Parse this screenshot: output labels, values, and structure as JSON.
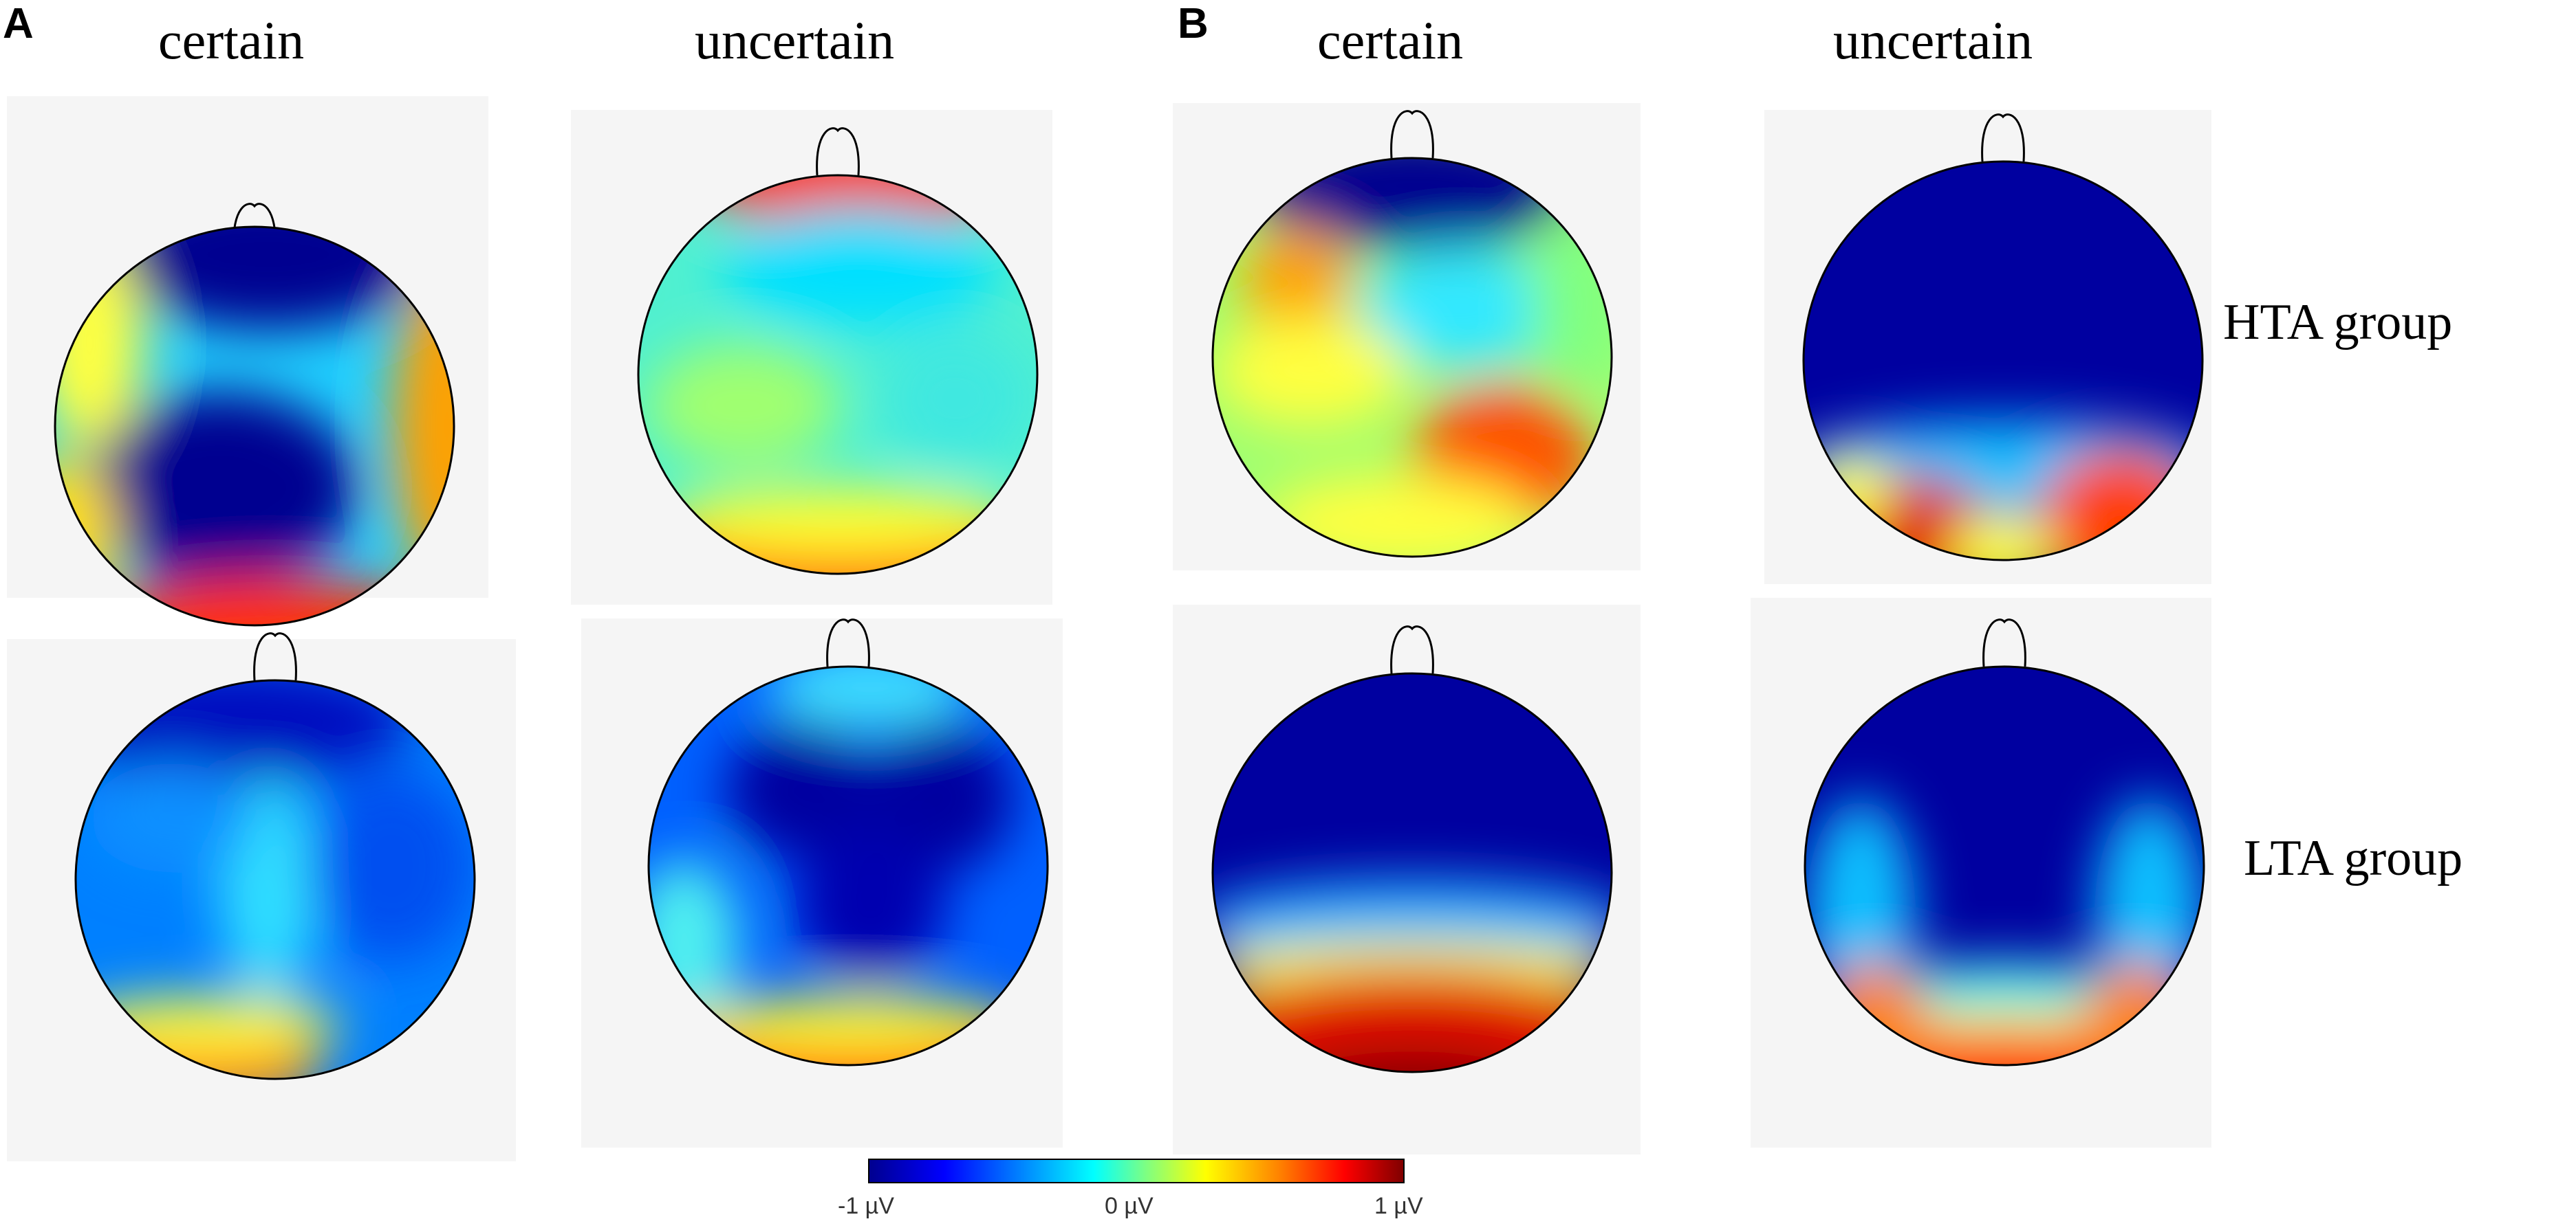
{
  "panels": [
    {
      "letter": "A",
      "col_titles": [
        "certain",
        "uncertain"
      ]
    },
    {
      "letter": "B",
      "col_titles": [
        "certain",
        "uncertain"
      ]
    }
  ],
  "row_labels": [
    "HTA group",
    "LTA group"
  ],
  "colorbar": {
    "min_label": "-1 µV",
    "mid_label": "0 µV",
    "max_label": "1 µV",
    "colormap": [
      "#00008f",
      "#0000ff",
      "#0080ff",
      "#00ffff",
      "#80ff80",
      "#ffff00",
      "#ff8000",
      "#ff0000",
      "#800000"
    ]
  },
  "maps": [
    {
      "id": "A-HTA-certain",
      "background": "#00c8ff"
    },
    {
      "id": "A-HTA-uncertain",
      "background": "#40f0d8"
    },
    {
      "id": "A-LTA-certain",
      "background": "#0090ff"
    },
    {
      "id": "A-LTA-uncertain",
      "background": "#0040e0"
    },
    {
      "id": "B-HTA-certain",
      "background": "#90ff70"
    },
    {
      "id": "B-HTA-uncertain",
      "background": "#0000a0"
    },
    {
      "id": "B-LTA-certain",
      "background": "#0000a0"
    },
    {
      "id": "B-LTA-uncertain",
      "background": "#0000a0"
    }
  ]
}
